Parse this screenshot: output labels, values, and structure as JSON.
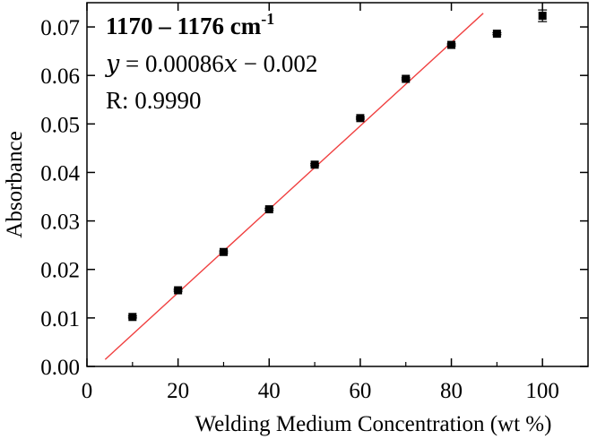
{
  "chart_data": {
    "type": "scatter",
    "xlabel": "Welding Medium Concentration (wt %)",
    "ylabel": "Absorbance",
    "xlim": [
      0,
      110
    ],
    "ylim": [
      0,
      0.075
    ],
    "xticks": [
      0,
      20,
      40,
      60,
      80,
      100
    ],
    "xtick_labels": [
      "0",
      "20",
      "40",
      "60",
      "80",
      "100"
    ],
    "yticks": [
      0,
      0.01,
      0.02,
      0.03,
      0.04,
      0.05,
      0.06,
      0.07
    ],
    "ytick_labels": [
      "0.00",
      "0.01",
      "0.02",
      "0.03",
      "0.04",
      "0.05",
      "0.06",
      "0.07"
    ],
    "grid": false,
    "points": {
      "x": [
        10,
        20,
        30,
        40,
        50,
        60,
        70,
        80,
        90,
        100
      ],
      "y": [
        0.0102,
        0.0157,
        0.0236,
        0.0324,
        0.0416,
        0.0512,
        0.0593,
        0.0663,
        0.0686,
        0.0723
      ],
      "err": [
        0.0002,
        0.0002,
        0.0002,
        0.0002,
        0.0002,
        0.0002,
        0.0002,
        0.0002,
        0.0002,
        0.0012
      ],
      "color": "#000000"
    },
    "fit_line": {
      "x_range": [
        4,
        87
      ],
      "slope": 0.00086,
      "intercept": -0.002,
      "color": "#f04040"
    },
    "annotations": {
      "range_text": "1170 – 1176 cm",
      "range_superscript": "-1",
      "equation": "𝑦 = 0.00086𝑥 − 0.002",
      "r_value": "R: 0.9990"
    }
  }
}
